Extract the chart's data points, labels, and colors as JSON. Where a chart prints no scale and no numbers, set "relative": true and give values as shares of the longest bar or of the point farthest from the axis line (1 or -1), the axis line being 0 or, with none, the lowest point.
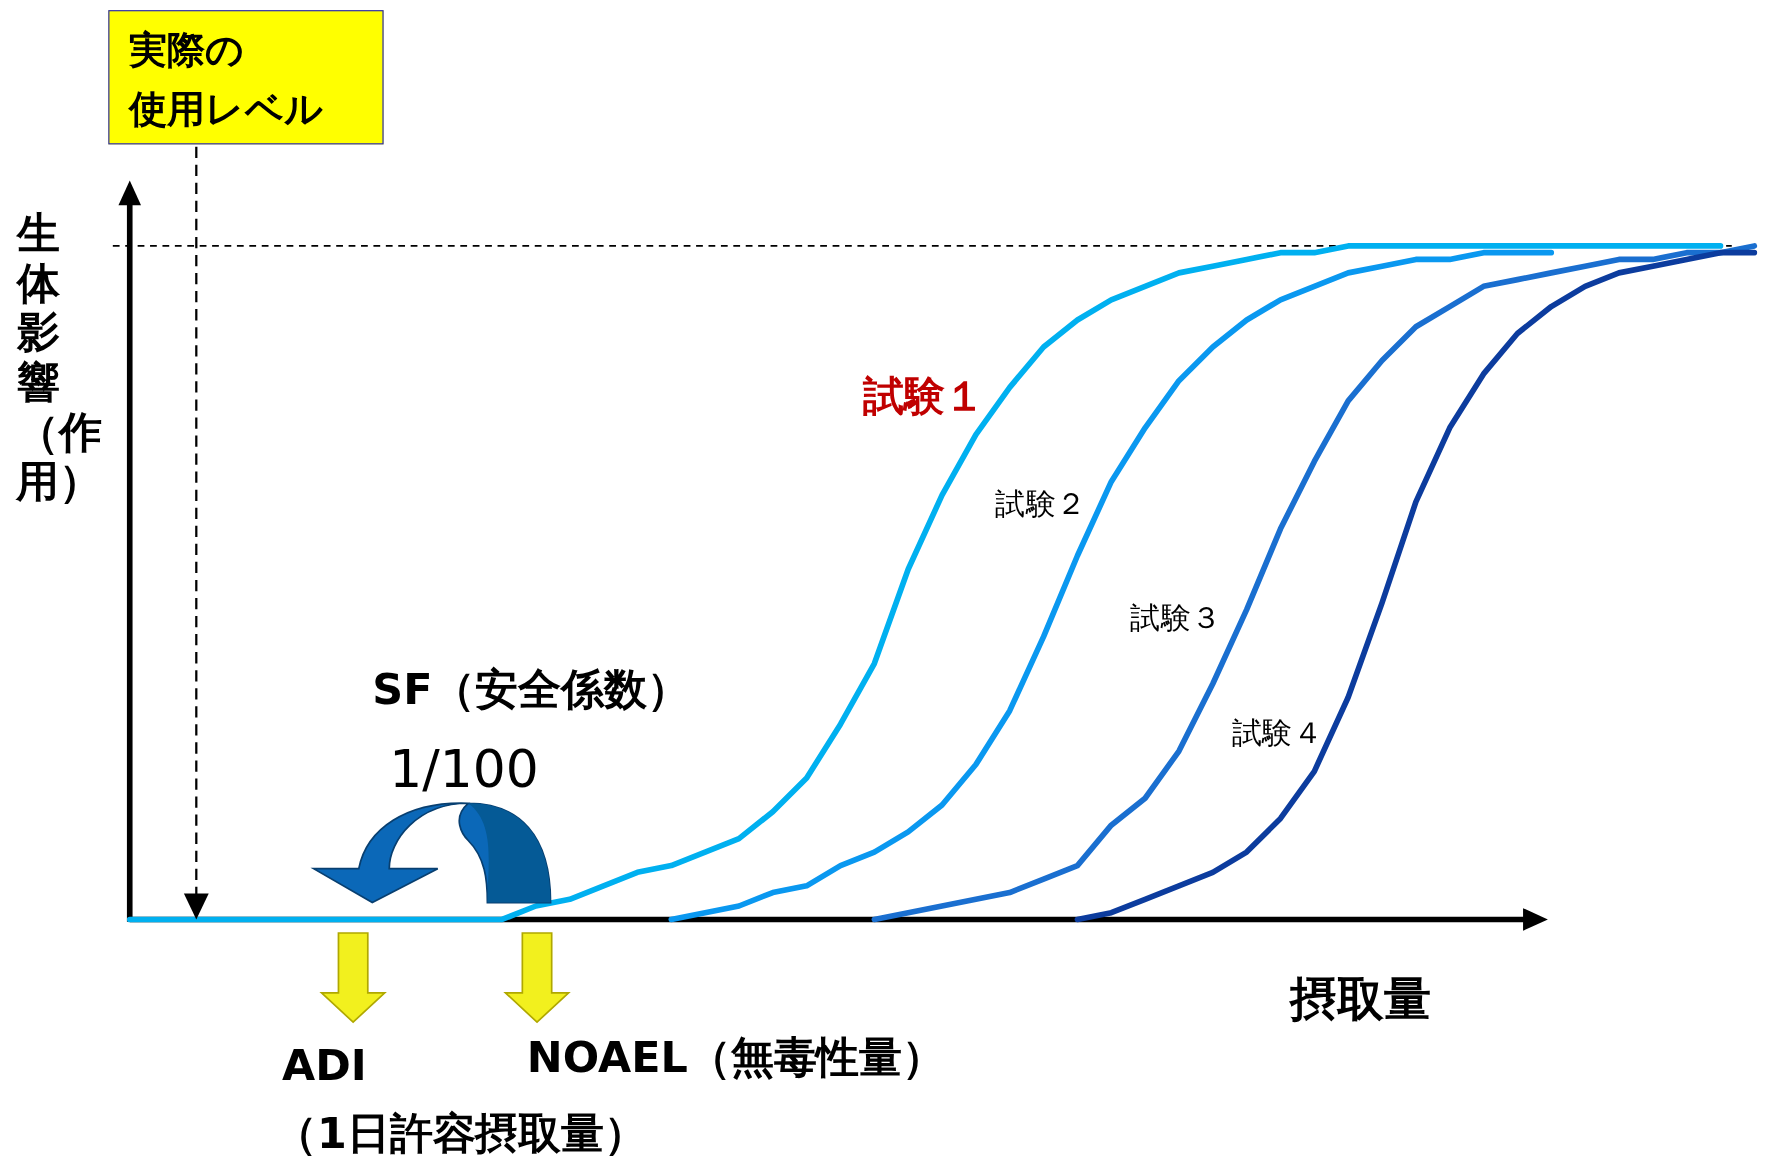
{
  "chart_data": {
    "type": "line",
    "relative": true,
    "ylabel": "生体影響（作用）",
    "xlabel": "摂取量",
    "categories": [
      null,
      null,
      null,
      null,
      null,
      null,
      null,
      null,
      null,
      null,
      null,
      null,
      null,
      null,
      null,
      null,
      null,
      null,
      null,
      null,
      null,
      null,
      null,
      null,
      null,
      null,
      null,
      null,
      null,
      null,
      null,
      null,
      null,
      null,
      null,
      null,
      null,
      null,
      null,
      null,
      null,
      null,
      null,
      null,
      null,
      null,
      null,
      null,
      null
    ],
    "series": [
      {
        "name": "試験１",
        "color": "#00b0f0",
        "values": [
          0,
          0,
          0,
          0,
          0,
          0,
          0,
          0,
          0,
          0,
          0,
          0,
          0.02,
          0.03,
          0.05,
          0.07,
          0.08,
          0.1,
          0.12,
          0.16,
          0.21,
          0.29,
          0.38,
          0.52,
          0.63,
          0.72,
          0.79,
          0.85,
          0.89,
          0.92,
          0.94,
          0.96,
          0.97,
          0.98,
          0.99,
          0.99,
          1,
          1,
          1,
          1,
          1,
          1,
          1,
          1,
          1,
          1,
          1,
          1,
          null
        ]
      },
      {
        "name": "試験２",
        "color": "#0a98f0",
        "values": [
          null,
          null,
          null,
          null,
          null,
          null,
          null,
          null,
          null,
          null,
          null,
          null,
          null,
          null,
          null,
          null,
          0,
          0.01,
          0.02,
          0.04,
          0.05,
          0.08,
          0.1,
          0.13,
          0.17,
          0.23,
          0.31,
          0.42,
          0.54,
          0.65,
          0.73,
          0.8,
          0.85,
          0.89,
          0.92,
          0.94,
          0.96,
          0.97,
          0.98,
          0.98,
          0.99,
          0.99,
          0.99,
          null,
          null,
          null,
          null,
          null,
          null
        ]
      },
      {
        "name": "試験３",
        "color": "#1a6fd0",
        "values": [
          null,
          null,
          null,
          null,
          null,
          null,
          null,
          null,
          null,
          null,
          null,
          null,
          null,
          null,
          null,
          null,
          null,
          null,
          null,
          null,
          null,
          null,
          0,
          0.01,
          0.02,
          0.03,
          0.04,
          0.06,
          0.08,
          0.14,
          0.18,
          0.25,
          0.35,
          0.46,
          0.58,
          0.68,
          0.77,
          0.83,
          0.88,
          0.91,
          0.94,
          0.95,
          0.96,
          0.97,
          0.98,
          0.98,
          0.99,
          0.99,
          1
        ]
      },
      {
        "name": "試験４",
        "color": "#0c3c9e",
        "values": [
          null,
          null,
          null,
          null,
          null,
          null,
          null,
          null,
          null,
          null,
          null,
          null,
          null,
          null,
          null,
          null,
          null,
          null,
          null,
          null,
          null,
          null,
          null,
          null,
          null,
          null,
          null,
          null,
          0,
          0.01,
          0.03,
          0.05,
          0.07,
          0.1,
          0.15,
          0.22,
          0.33,
          0.47,
          0.62,
          0.73,
          0.81,
          0.87,
          0.91,
          0.94,
          0.96,
          0.97,
          0.98,
          0.99,
          0.99
        ]
      }
    ],
    "ref_lines": [
      {
        "axis": "y",
        "value": 1,
        "line_style": "dashed",
        "color": "#000000"
      }
    ],
    "annotations": [
      "実際の",
      "使用レベル",
      "SF（安全係数）",
      "1/100",
      "ADI",
      "（1日許容摂取量）",
      "NOAEL（無毒性量）"
    ]
  }
}
